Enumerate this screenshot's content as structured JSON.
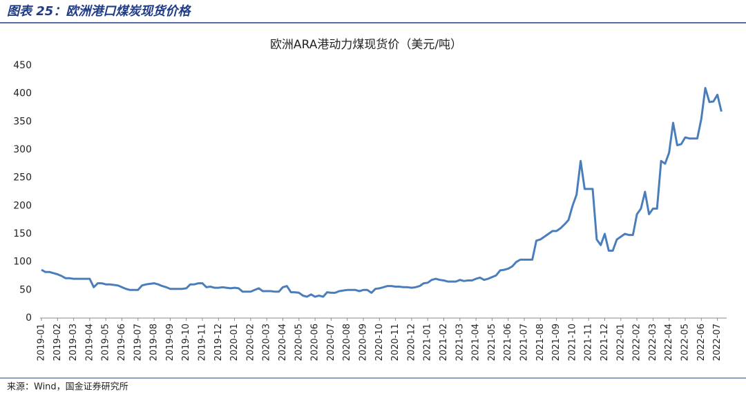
{
  "header": {
    "title": "图表 25：欧洲港口煤炭现货价格"
  },
  "source": "来源：Wind，国金证券研究所",
  "chart_data": {
    "type": "line",
    "title": "欧洲ARA港动力煤现货价（美元/吨）",
    "categories": [
      "2019-01",
      null,
      null,
      null,
      "2019-02",
      null,
      null,
      null,
      "2019-03",
      null,
      null,
      null,
      "2019-04",
      null,
      null,
      null,
      "2019-05",
      null,
      null,
      null,
      "2019-06",
      null,
      null,
      null,
      "2019-07",
      null,
      null,
      null,
      "2019-08",
      null,
      null,
      null,
      "2019-09",
      null,
      null,
      null,
      "2019-10",
      null,
      null,
      null,
      "2019-11",
      null,
      null,
      null,
      "2019-12",
      null,
      null,
      null,
      "2020-01",
      null,
      null,
      null,
      "2020-02",
      null,
      null,
      null,
      "2020-03",
      null,
      null,
      null,
      "2020-04",
      null,
      null,
      null,
      "2020-05",
      null,
      null,
      null,
      "2020-06",
      null,
      null,
      null,
      "2020-07",
      null,
      null,
      null,
      "2020-08",
      null,
      null,
      null,
      "2020-09",
      null,
      null,
      null,
      "2020-10",
      null,
      null,
      null,
      "2020-11",
      null,
      null,
      null,
      "2020-12",
      null,
      null,
      null,
      "2021-01",
      null,
      null,
      null,
      "2021-02",
      null,
      null,
      null,
      "2021-03",
      null,
      null,
      null,
      "2021-04",
      null,
      null,
      null,
      "2021-05",
      null,
      null,
      null,
      "2021-06",
      null,
      null,
      null,
      "2021-07",
      null,
      null,
      null,
      "2021-08",
      null,
      null,
      null,
      "2021-09",
      null,
      null,
      null,
      "2021-10",
      null,
      null,
      null,
      "2021-11",
      null,
      null,
      null,
      "2021-12",
      null,
      null,
      null,
      "2022-01",
      null,
      null,
      null,
      "2022-02",
      null,
      null,
      null,
      "2022-03",
      null,
      null,
      null,
      "2022-04",
      null,
      null,
      null,
      "2022-05",
      null,
      null,
      null,
      "2022-06",
      null,
      null,
      null,
      "2022-07",
      null
    ],
    "values": [
      86,
      82,
      82,
      80,
      78,
      75,
      71,
      71,
      70,
      70,
      70,
      70,
      70,
      55,
      62,
      62,
      60,
      60,
      59,
      58,
      55,
      52,
      50,
      50,
      50,
      58,
      60,
      61,
      62,
      60,
      57,
      55,
      52,
      52,
      52,
      52,
      53,
      60,
      60,
      62,
      62,
      55,
      56,
      54,
      54,
      55,
      54,
      53,
      54,
      53,
      47,
      47,
      47,
      50,
      53,
      48,
      48,
      48,
      47,
      47,
      55,
      57,
      46,
      46,
      45,
      40,
      38,
      42,
      38,
      40,
      38,
      46,
      45,
      45,
      48,
      49,
      50,
      50,
      50,
      48,
      50,
      50,
      45,
      52,
      53,
      55,
      57,
      57,
      56,
      56,
      55,
      55,
      54,
      55,
      57,
      62,
      63,
      68,
      70,
      68,
      67,
      65,
      65,
      65,
      68,
      66,
      67,
      67,
      70,
      72,
      68,
      70,
      73,
      76,
      85,
      86,
      88,
      92,
      100,
      104,
      104,
      104,
      104,
      138,
      140,
      145,
      150,
      155,
      155,
      160,
      167,
      175,
      200,
      220,
      280,
      230,
      230,
      230,
      140,
      130,
      150,
      120,
      120,
      140,
      145,
      150,
      148,
      148,
      185,
      195,
      225,
      185,
      195,
      195,
      280,
      275,
      295,
      348,
      308,
      310,
      322,
      320,
      320,
      320,
      355,
      410,
      385,
      386,
      398,
      368
    ],
    "color": "#4a7ebb",
    "ylim": [
      0,
      450
    ],
    "yticks": [
      0,
      50,
      100,
      150,
      200,
      250,
      300,
      350,
      400,
      450
    ],
    "grid": false
  }
}
